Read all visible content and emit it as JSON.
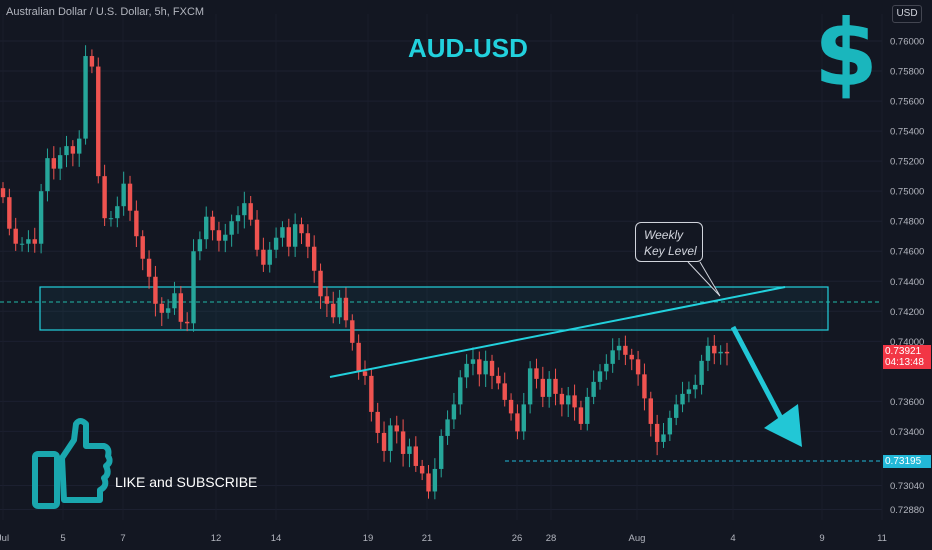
{
  "header": {
    "symbol_line": "Australian Dollar / U.S. Dollar, 5h, FXCM",
    "currency_button": "USD"
  },
  "overlay": {
    "title": "AUD-USD",
    "dollar_symbol": "$",
    "callout_line1": "Weekly",
    "callout_line2": "Key Level",
    "like_text": "LIKE and SUBSCRIBE",
    "thumbs_icon": "thumbs-up-icon"
  },
  "price_labels": {
    "current_price": "0.73921",
    "countdown": "04:13:48",
    "support_price": "0.73195",
    "current_price_color": "#f23645",
    "support_price_color": "#22b8d8"
  },
  "colors": {
    "up": "#26a69a",
    "down": "#ef5350",
    "accent": "#22d1dd",
    "background": "#131722"
  },
  "chart_data": {
    "type": "candlestick",
    "title": "AUD-USD",
    "x_tick_labels": [
      "Jul",
      "5",
      "7",
      "12",
      "14",
      "19",
      "21",
      "26",
      "28",
      "Aug",
      "4",
      "9",
      "11"
    ],
    "y_tick_labels": [
      "0.76000",
      "0.75800",
      "0.75600",
      "0.75400",
      "0.75200",
      "0.75000",
      "0.74800",
      "0.74600",
      "0.74400",
      "0.74200",
      "0.74000",
      "0.73600",
      "0.73400",
      "0.73040",
      "0.72880"
    ],
    "ylim": [
      0.7281,
      0.7618
    ],
    "key_level_zone": [
      0.74055,
      0.74335
    ],
    "dashed_level": 0.74235,
    "support_level": 0.73195,
    "trendline": {
      "start_price": 0.7379,
      "end_price": 0.7434
    },
    "closes": [
      0.7496,
      0.7475,
      0.7465,
      0.7465,
      0.7468,
      0.7465,
      0.75,
      0.7522,
      0.7515,
      0.7524,
      0.753,
      0.7525,
      0.7535,
      0.759,
      0.7583,
      0.751,
      0.7482,
      0.7482,
      0.749,
      0.7505,
      0.7487,
      0.747,
      0.7455,
      0.7443,
      0.7425,
      0.7419,
      0.7422,
      0.7432,
      0.7413,
      0.7412,
      0.746,
      0.7468,
      0.7483,
      0.7474,
      0.7467,
      0.7471,
      0.748,
      0.7484,
      0.7492,
      0.7481,
      0.7461,
      0.7451,
      0.7461,
      0.7469,
      0.7476,
      0.7463,
      0.7478,
      0.7472,
      0.7463,
      0.7447,
      0.743,
      0.7425,
      0.7416,
      0.7429,
      0.7414,
      0.7399,
      0.738,
      0.7377,
      0.7353,
      0.7339,
      0.7327,
      0.7344,
      0.734,
      0.7325,
      0.733,
      0.7317,
      0.7312,
      0.73,
      0.7315,
      0.7337,
      0.7348,
      0.7358,
      0.7376,
      0.7385,
      0.7388,
      0.7378,
      0.7387,
      0.7377,
      0.7372,
      0.7361,
      0.7352,
      0.734,
      0.7358,
      0.7382,
      0.7375,
      0.7363,
      0.7375,
      0.7365,
      0.7358,
      0.7364,
      0.7356,
      0.7345,
      0.7363,
      0.7373,
      0.738,
      0.7385,
      0.7394,
      0.7397,
      0.7391,
      0.7388,
      0.7378,
      0.7362,
      0.7345,
      0.7333,
      0.7338,
      0.7349,
      0.7358,
      0.7365,
      0.7368,
      0.7371,
      0.7387,
      0.7397,
      0.7392,
      0.7393,
      0.7392
    ]
  }
}
